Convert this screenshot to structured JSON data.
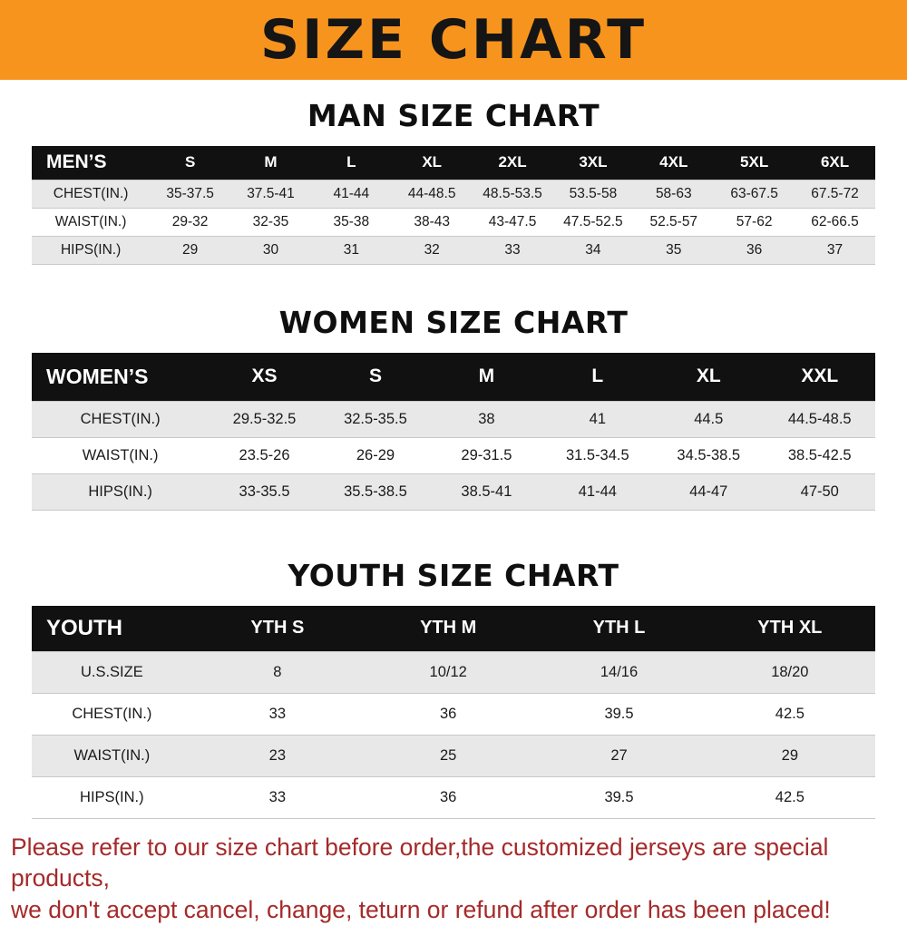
{
  "banner": {
    "title": "SIZE CHART"
  },
  "colors": {
    "banner_bg": "#f7941d",
    "table_header_bg": "#111111",
    "row_stripe": "#e8e8e8",
    "footer_text": "#a52a2a"
  },
  "chart_data": [
    {
      "type": "table",
      "title": "MAN SIZE CHART",
      "columns": [
        "MEN’S",
        "S",
        "M",
        "L",
        "XL",
        "2XL",
        "3XL",
        "4XL",
        "5XL",
        "6XL"
      ],
      "rows": [
        [
          "CHEST(IN.)",
          "35-37.5",
          "37.5-41",
          "41-44",
          "44-48.5",
          "48.5-53.5",
          "53.5-58",
          "58-63",
          "63-67.5",
          "67.5-72"
        ],
        [
          "WAIST(IN.)",
          "29-32",
          "32-35",
          "35-38",
          "38-43",
          "43-47.5",
          "47.5-52.5",
          "52.5-57",
          "57-62",
          "62-66.5"
        ],
        [
          "HIPS(IN.)",
          "29",
          "30",
          "31",
          "32",
          "33",
          "34",
          "35",
          "36",
          "37"
        ]
      ]
    },
    {
      "type": "table",
      "title": "WOMEN SIZE CHART",
      "columns": [
        "WOMEN’S",
        "XS",
        "S",
        "M",
        "L",
        "XL",
        "XXL"
      ],
      "rows": [
        [
          "CHEST(IN.)",
          "29.5-32.5",
          "32.5-35.5",
          "38",
          "41",
          "44.5",
          "44.5-48.5"
        ],
        [
          "WAIST(IN.)",
          "23.5-26",
          "26-29",
          "29-31.5",
          "31.5-34.5",
          "34.5-38.5",
          "38.5-42.5"
        ],
        [
          "HIPS(IN.)",
          "33-35.5",
          "35.5-38.5",
          "38.5-41",
          "41-44",
          "44-47",
          "47-50"
        ]
      ]
    },
    {
      "type": "table",
      "title": "YOUTH SIZE CHART",
      "columns": [
        "YOUTH",
        "YTH S",
        "YTH M",
        "YTH L",
        "YTH XL"
      ],
      "rows": [
        [
          "U.S.SIZE",
          "8",
          "10/12",
          "14/16",
          "18/20"
        ],
        [
          "CHEST(IN.)",
          "33",
          "36",
          "39.5",
          "42.5"
        ],
        [
          "WAIST(IN.)",
          "23",
          "25",
          "27",
          "29"
        ],
        [
          "HIPS(IN.)",
          "33",
          "36",
          "39.5",
          "42.5"
        ]
      ]
    }
  ],
  "footer": {
    "lines": [
      "Please refer to our size chart before order,the customized jerseys are special products,",
      "we don't accept cancel, change, teturn or refund after order has been placed!"
    ]
  }
}
